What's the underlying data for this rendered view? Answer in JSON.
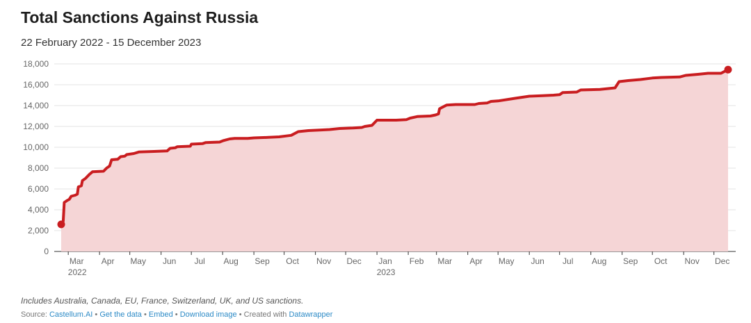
{
  "header": {
    "title": "Total Sanctions Against Russia",
    "subtitle": "22 February 2022 - 15 December 2023"
  },
  "notes": "Includes Australia, Canada, EU, France, Switzerland, UK, and US sanctions.",
  "footer": {
    "source_prefix": "Source:",
    "links": [
      "Castellum.AI",
      "Get the data",
      "Embed",
      "Download image"
    ],
    "created_with_text": "Created with",
    "created_with_link": "Datawrapper",
    "separator": "•"
  },
  "chart_data": {
    "type": "area",
    "title": "Total Sanctions Against Russia",
    "subtitle": "22 February 2022 - 15 December 2023",
    "ylim": [
      0,
      18000
    ],
    "grid": true,
    "colors": {
      "line": "#c91d20",
      "fill": "#f5d5d6"
    },
    "x_domain": [
      "2022-02-22",
      "2023-12-15"
    ],
    "y_ticks": [
      {
        "value": 0,
        "label": "0"
      },
      {
        "value": 2000,
        "label": "2,000"
      },
      {
        "value": 4000,
        "label": "4,000"
      },
      {
        "value": 6000,
        "label": "6,000"
      },
      {
        "value": 8000,
        "label": "8,000"
      },
      {
        "value": 10000,
        "label": "10,000"
      },
      {
        "value": 12000,
        "label": "12,000"
      },
      {
        "value": 14000,
        "label": "14,000"
      },
      {
        "value": 16000,
        "label": "16,000"
      },
      {
        "value": 18000,
        "label": "18,000"
      }
    ],
    "x_ticks": [
      {
        "date": "2022-03-01",
        "label": "Mar",
        "year": "2022"
      },
      {
        "date": "2022-04-01",
        "label": "Apr"
      },
      {
        "date": "2022-05-01",
        "label": "May"
      },
      {
        "date": "2022-06-01",
        "label": "Jun"
      },
      {
        "date": "2022-07-01",
        "label": "Jul"
      },
      {
        "date": "2022-08-01",
        "label": "Aug"
      },
      {
        "date": "2022-09-01",
        "label": "Sep"
      },
      {
        "date": "2022-10-01",
        "label": "Oct"
      },
      {
        "date": "2022-11-01",
        "label": "Nov"
      },
      {
        "date": "2022-12-01",
        "label": "Dec"
      },
      {
        "date": "2023-01-01",
        "label": "Jan",
        "year": "2023"
      },
      {
        "date": "2023-02-01",
        "label": "Feb"
      },
      {
        "date": "2023-03-01",
        "label": "Mar"
      },
      {
        "date": "2023-04-01",
        "label": "Apr"
      },
      {
        "date": "2023-05-01",
        "label": "May"
      },
      {
        "date": "2023-06-01",
        "label": "Jun"
      },
      {
        "date": "2023-07-01",
        "label": "Jul"
      },
      {
        "date": "2023-08-01",
        "label": "Aug"
      },
      {
        "date": "2023-09-01",
        "label": "Sep"
      },
      {
        "date": "2023-10-01",
        "label": "Oct"
      },
      {
        "date": "2023-11-01",
        "label": "Nov"
      },
      {
        "date": "2023-12-01",
        "label": "Dec"
      }
    ],
    "series": [
      {
        "points": [
          [
            "2022-02-22",
            2600
          ],
          [
            "2022-02-24",
            2900
          ],
          [
            "2022-02-25",
            4700
          ],
          [
            "2022-02-28",
            4900
          ],
          [
            "2022-03-02",
            5000
          ],
          [
            "2022-03-04",
            5300
          ],
          [
            "2022-03-08",
            5400
          ],
          [
            "2022-03-10",
            5500
          ],
          [
            "2022-03-11",
            6200
          ],
          [
            "2022-03-14",
            6300
          ],
          [
            "2022-03-15",
            6800
          ],
          [
            "2022-03-18",
            7000
          ],
          [
            "2022-03-22",
            7400
          ],
          [
            "2022-03-25",
            7650
          ],
          [
            "2022-04-05",
            7700
          ],
          [
            "2022-04-08",
            8000
          ],
          [
            "2022-04-11",
            8200
          ],
          [
            "2022-04-13",
            8800
          ],
          [
            "2022-04-19",
            8850
          ],
          [
            "2022-04-22",
            9100
          ],
          [
            "2022-04-26",
            9150
          ],
          [
            "2022-04-28",
            9300
          ],
          [
            "2022-05-05",
            9400
          ],
          [
            "2022-05-10",
            9550
          ],
          [
            "2022-05-25",
            9600
          ],
          [
            "2022-06-07",
            9650
          ],
          [
            "2022-06-10",
            9900
          ],
          [
            "2022-06-15",
            9950
          ],
          [
            "2022-06-17",
            10050
          ],
          [
            "2022-06-30",
            10100
          ],
          [
            "2022-07-01",
            10300
          ],
          [
            "2022-07-12",
            10350
          ],
          [
            "2022-07-15",
            10450
          ],
          [
            "2022-07-29",
            10500
          ],
          [
            "2022-08-02",
            10650
          ],
          [
            "2022-08-08",
            10800
          ],
          [
            "2022-08-13",
            10850
          ],
          [
            "2022-08-26",
            10850
          ],
          [
            "2022-09-01",
            10900
          ],
          [
            "2022-09-15",
            10950
          ],
          [
            "2022-09-26",
            11000
          ],
          [
            "2022-10-08",
            11150
          ],
          [
            "2022-10-15",
            11500
          ],
          [
            "2022-10-25",
            11600
          ],
          [
            "2022-11-05",
            11650
          ],
          [
            "2022-11-15",
            11700
          ],
          [
            "2022-11-25",
            11800
          ],
          [
            "2022-12-08",
            11850
          ],
          [
            "2022-12-17",
            11900
          ],
          [
            "2022-12-20",
            12000
          ],
          [
            "2022-12-27",
            12100
          ],
          [
            "2023-01-01",
            12600
          ],
          [
            "2023-01-20",
            12600
          ],
          [
            "2023-01-30",
            12650
          ],
          [
            "2023-02-03",
            12800
          ],
          [
            "2023-02-10",
            12950
          ],
          [
            "2023-02-23",
            13000
          ],
          [
            "2023-02-28",
            13100
          ],
          [
            "2023-03-03",
            13200
          ],
          [
            "2023-03-04",
            13700
          ],
          [
            "2023-03-08",
            13900
          ],
          [
            "2023-03-11",
            14050
          ],
          [
            "2023-03-20",
            14100
          ],
          [
            "2023-04-08",
            14100
          ],
          [
            "2023-04-12",
            14200
          ],
          [
            "2023-04-20",
            14250
          ],
          [
            "2023-04-24",
            14400
          ],
          [
            "2023-05-01",
            14450
          ],
          [
            "2023-05-18",
            14700
          ],
          [
            "2023-06-01",
            14900
          ],
          [
            "2023-06-14",
            14950
          ],
          [
            "2023-06-25",
            15000
          ],
          [
            "2023-07-01",
            15050
          ],
          [
            "2023-07-04",
            15250
          ],
          [
            "2023-07-18",
            15300
          ],
          [
            "2023-07-22",
            15500
          ],
          [
            "2023-08-10",
            15550
          ],
          [
            "2023-08-20",
            15650
          ],
          [
            "2023-08-25",
            15700
          ],
          [
            "2023-08-29",
            16300
          ],
          [
            "2023-09-07",
            16400
          ],
          [
            "2023-09-19",
            16500
          ],
          [
            "2023-10-01",
            16650
          ],
          [
            "2023-10-10",
            16700
          ],
          [
            "2023-10-28",
            16750
          ],
          [
            "2023-11-03",
            16900
          ],
          [
            "2023-11-15",
            17000
          ],
          [
            "2023-11-25",
            17100
          ],
          [
            "2023-12-08",
            17100
          ],
          [
            "2023-12-12",
            17300
          ],
          [
            "2023-12-15",
            17450
          ]
        ]
      }
    ]
  }
}
